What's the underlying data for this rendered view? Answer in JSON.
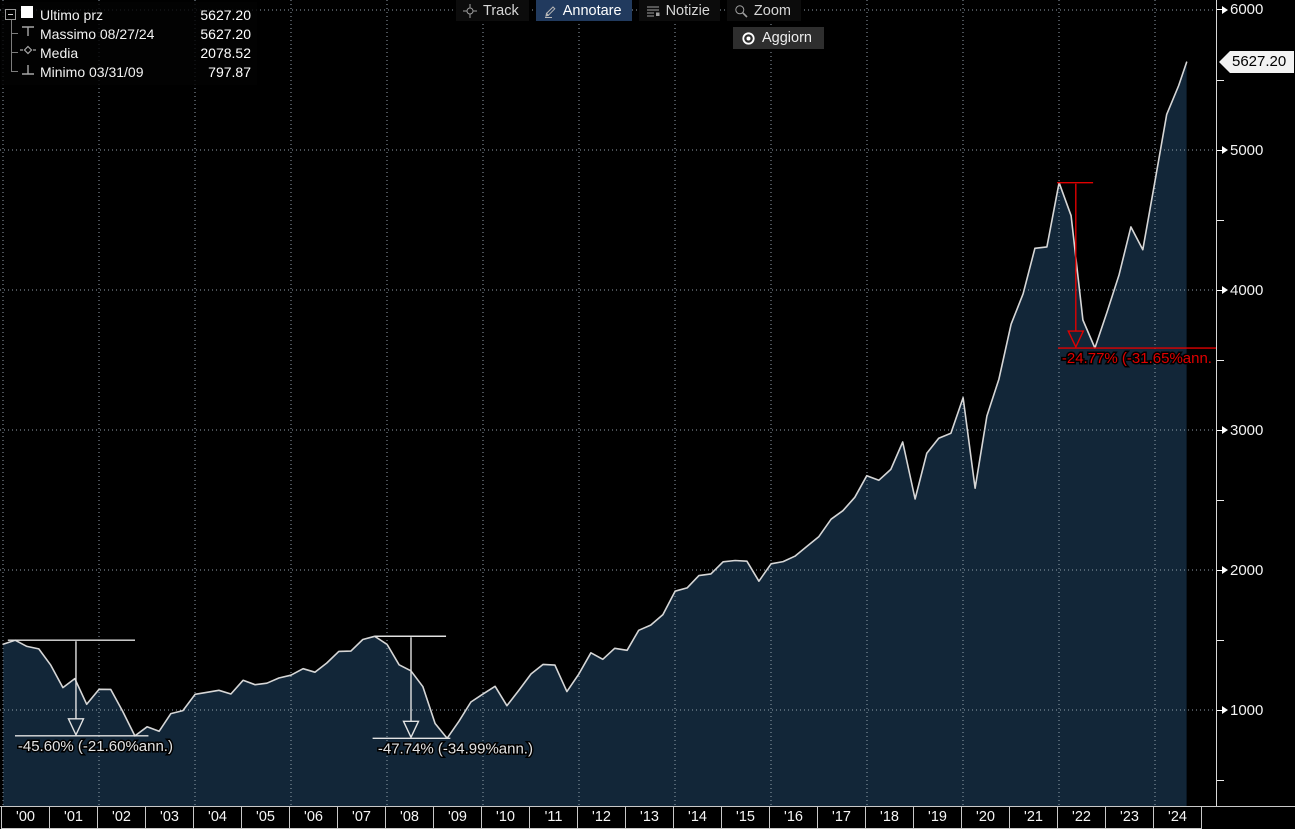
{
  "toolbar": {
    "track_label": "Track",
    "annotate_label": "Annotare",
    "news_label": "Notizie",
    "zoom_label": "Zoom",
    "refresh_label": "Aggiorn",
    "active_button": "Annotare",
    "active_bg_color": "#213a5e"
  },
  "legend": {
    "rows": [
      {
        "label": "Ultimo prz",
        "value": "5627.20",
        "marker": "last-price-swatch"
      },
      {
        "label": "Massimo 08/27/24",
        "value": "5627.20",
        "marker": "maximum-tick"
      },
      {
        "label": "Media",
        "value": "2078.52",
        "marker": "mean-marker"
      },
      {
        "label": "Minimo 03/31/09",
        "value": "797.87",
        "marker": "minimum-tick"
      }
    ]
  },
  "y_axis": {
    "major_ticks": [
      6000,
      5000,
      4000,
      3000,
      2000,
      1000
    ],
    "minor_ticks": [
      5500,
      4500,
      3500,
      2500,
      1500,
      500
    ],
    "last_price_label": "5627.20"
  },
  "x_axis": {
    "labels": [
      "'00",
      "'01",
      "'02",
      "'03",
      "'04",
      "'05",
      "'06",
      "'07",
      "'08",
      "'09",
      "'10",
      "'11",
      "'12",
      "'13",
      "'14",
      "'15",
      "'16",
      "'17",
      "'18",
      "'19",
      "'20",
      "'21",
      "'22",
      "'23",
      "'24"
    ]
  },
  "chart_data": {
    "type": "area",
    "series_name": "Ultimo prz",
    "x_unit": "quarter-end dates",
    "stats": {
      "last": 5627.2,
      "max_date": "08/27/24",
      "max": 5627.2,
      "mean": 2078.52,
      "min_date": "03/31/09",
      "min": 797.87
    },
    "y_gridlines": [
      1000,
      2000,
      3000,
      4000,
      5000,
      6000
    ],
    "x_gridline_years": [
      2000,
      2002,
      2004,
      2006,
      2008,
      2010,
      2012,
      2014,
      2016,
      2018,
      2020,
      2022,
      2024
    ],
    "ylim": [
      320,
      6070
    ],
    "colors": {
      "area_fill": "#122638",
      "line": "#d6d6d6",
      "grid": "#93a1ad",
      "annotation_white": "#e2e2e2",
      "annotation_red": "#e00000"
    },
    "points": [
      [
        "1999-12-31",
        1469.25
      ],
      [
        "2000-03-31",
        1498.58
      ],
      [
        "2000-06-30",
        1454.6
      ],
      [
        "2000-09-29",
        1436.51
      ],
      [
        "2000-12-29",
        1320.28
      ],
      [
        "2001-03-30",
        1160.33
      ],
      [
        "2001-06-29",
        1224.38
      ],
      [
        "2001-09-28",
        1040.94
      ],
      [
        "2001-12-31",
        1148.08
      ],
      [
        "2002-03-28",
        1147.39
      ],
      [
        "2002-06-28",
        989.82
      ],
      [
        "2002-09-30",
        815.28
      ],
      [
        "2002-12-31",
        879.82
      ],
      [
        "2003-03-31",
        848.18
      ],
      [
        "2003-06-30",
        974.5
      ],
      [
        "2003-09-30",
        995.97
      ],
      [
        "2003-12-31",
        1111.92
      ],
      [
        "2004-03-31",
        1126.21
      ],
      [
        "2004-06-30",
        1140.84
      ],
      [
        "2004-09-30",
        1114.58
      ],
      [
        "2004-12-31",
        1211.92
      ],
      [
        "2005-03-31",
        1180.59
      ],
      [
        "2005-06-30",
        1191.33
      ],
      [
        "2005-09-30",
        1228.81
      ],
      [
        "2005-12-30",
        1248.29
      ],
      [
        "2006-03-31",
        1294.87
      ],
      [
        "2006-06-30",
        1270.2
      ],
      [
        "2006-09-29",
        1335.85
      ],
      [
        "2006-12-29",
        1418.3
      ],
      [
        "2007-03-30",
        1420.86
      ],
      [
        "2007-06-29",
        1503.35
      ],
      [
        "2007-09-28",
        1526.75
      ],
      [
        "2007-12-31",
        1468.36
      ],
      [
        "2008-03-31",
        1322.7
      ],
      [
        "2008-06-30",
        1280.0
      ],
      [
        "2008-09-30",
        1166.36
      ],
      [
        "2008-12-31",
        903.25
      ],
      [
        "2009-03-31",
        797.87
      ],
      [
        "2009-06-30",
        919.32
      ],
      [
        "2009-09-30",
        1057.08
      ],
      [
        "2009-12-31",
        1115.1
      ],
      [
        "2010-03-31",
        1169.43
      ],
      [
        "2010-06-30",
        1030.71
      ],
      [
        "2010-09-30",
        1141.2
      ],
      [
        "2010-12-31",
        1257.64
      ],
      [
        "2011-03-31",
        1325.83
      ],
      [
        "2011-06-30",
        1320.64
      ],
      [
        "2011-09-30",
        1131.42
      ],
      [
        "2011-12-30",
        1257.6
      ],
      [
        "2012-03-30",
        1408.47
      ],
      [
        "2012-06-29",
        1362.16
      ],
      [
        "2012-09-28",
        1440.67
      ],
      [
        "2012-12-31",
        1426.19
      ],
      [
        "2013-03-28",
        1569.19
      ],
      [
        "2013-06-28",
        1606.28
      ],
      [
        "2013-09-30",
        1681.55
      ],
      [
        "2013-12-31",
        1848.36
      ],
      [
        "2014-03-31",
        1872.34
      ],
      [
        "2014-06-30",
        1960.23
      ],
      [
        "2014-09-30",
        1972.29
      ],
      [
        "2014-12-31",
        2058.9
      ],
      [
        "2015-03-31",
        2067.89
      ],
      [
        "2015-06-30",
        2063.11
      ],
      [
        "2015-09-30",
        1920.03
      ],
      [
        "2015-12-31",
        2043.94
      ],
      [
        "2016-03-31",
        2059.74
      ],
      [
        "2016-06-30",
        2098.86
      ],
      [
        "2016-09-30",
        2168.27
      ],
      [
        "2016-12-30",
        2238.83
      ],
      [
        "2017-03-31",
        2362.72
      ],
      [
        "2017-06-30",
        2423.41
      ],
      [
        "2017-09-29",
        2519.36
      ],
      [
        "2017-12-29",
        2673.61
      ],
      [
        "2018-03-29",
        2640.87
      ],
      [
        "2018-06-29",
        2718.37
      ],
      [
        "2018-09-28",
        2913.98
      ],
      [
        "2018-12-31",
        2506.85
      ],
      [
        "2019-03-29",
        2834.4
      ],
      [
        "2019-06-28",
        2941.76
      ],
      [
        "2019-09-30",
        2976.74
      ],
      [
        "2019-12-31",
        3230.78
      ],
      [
        "2020-03-31",
        2584.59
      ],
      [
        "2020-06-30",
        3100.29
      ],
      [
        "2020-09-30",
        3363.0
      ],
      [
        "2020-12-31",
        3756.07
      ],
      [
        "2021-03-31",
        3972.89
      ],
      [
        "2021-06-30",
        4297.5
      ],
      [
        "2021-09-30",
        4307.54
      ],
      [
        "2021-12-31",
        4766.18
      ],
      [
        "2022-03-31",
        4530.41
      ],
      [
        "2022-06-30",
        3785.38
      ],
      [
        "2022-09-30",
        3585.62
      ],
      [
        "2022-12-30",
        3839.5
      ],
      [
        "2023-03-31",
        4109.31
      ],
      [
        "2023-06-30",
        4450.38
      ],
      [
        "2023-09-29",
        4288.05
      ],
      [
        "2023-12-29",
        4769.83
      ],
      [
        "2024-03-28",
        5254.35
      ],
      [
        "2024-06-28",
        5460.48
      ],
      [
        "2024-08-27",
        5627.2
      ]
    ],
    "annotations": [
      {
        "text": "-45.60% (-21.60%ann.)",
        "color": "#e2e2e2",
        "peak_value": 1498.58,
        "trough_value": 815.28,
        "top_from": 2000.1,
        "top_to": 2002.75,
        "arrow_x": 2001.52,
        "bottom_from": 2000.25,
        "bottom_to": 2003.03,
        "text_x": 2000.31
      },
      {
        "text": "-47.74% (-34.99%ann.)",
        "color": "#e2e2e2",
        "peak_value": 1526.75,
        "trough_value": 797.87,
        "top_from": 2007.75,
        "top_to": 2009.23,
        "arrow_x": 2008.5,
        "bottom_from": 2007.7,
        "bottom_to": 2009.32,
        "text_x": 2007.81
      },
      {
        "text": "-24.77% (-31.65%ann.",
        "color": "#e00000",
        "peak_value": 4766.18,
        "trough_value": 3585.62,
        "top_from": 2021.96,
        "top_to": 2022.71,
        "arrow_x": 2022.35,
        "bottom_from": 2021.98,
        "bottom_to": 2025.4,
        "text_x": 2022.06
      }
    ]
  }
}
